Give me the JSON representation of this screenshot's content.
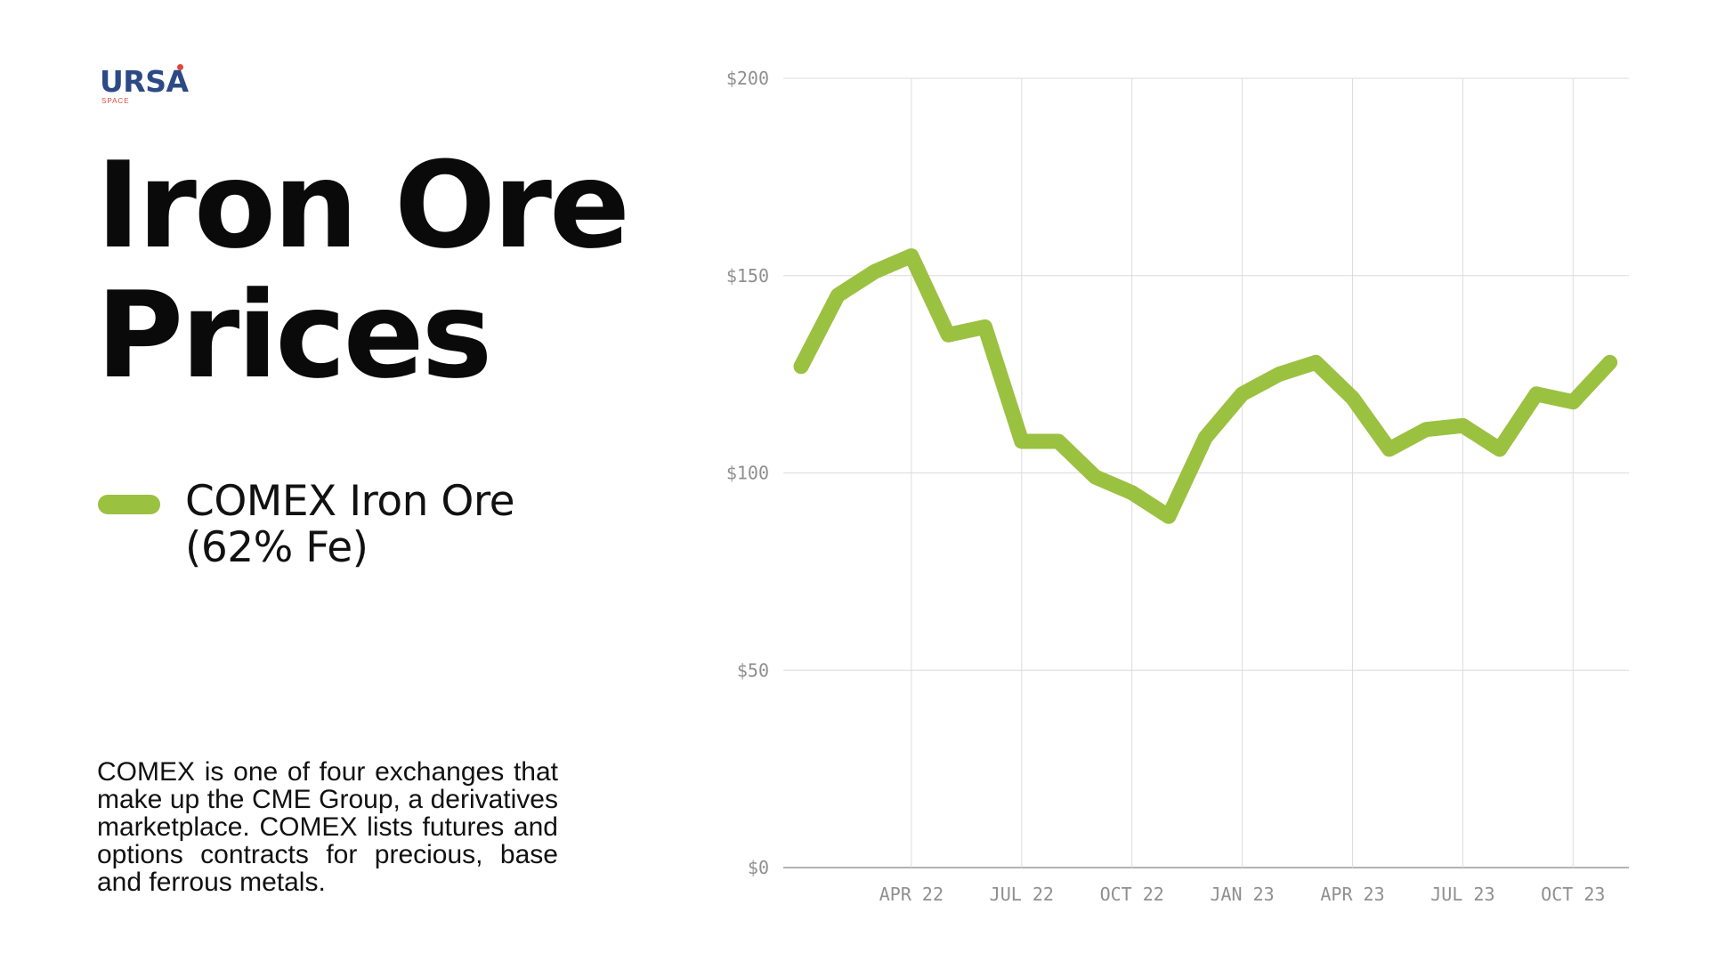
{
  "logo": {
    "word": "URSA",
    "sub": "SPACE"
  },
  "title_lines": [
    "Iron Ore",
    "Prices"
  ],
  "legend": {
    "label": "COMEX Iron Ore (62% Fe)",
    "color": "#9bc141"
  },
  "description": "COMEX is one of four exchanges that make up the CME Group, a derivatives marketplace. COMEX lists futures and options contracts for precious, base and ferrous metals.",
  "chart_data": {
    "type": "line",
    "title": "",
    "xlabel": "",
    "ylabel": "",
    "ylim": [
      0,
      200
    ],
    "y_ticks": [
      {
        "value": 0,
        "label": "$0"
      },
      {
        "value": 50,
        "label": "$50"
      },
      {
        "value": 100,
        "label": "$100"
      },
      {
        "value": 150,
        "label": "$150"
      },
      {
        "value": 200,
        "label": "$200"
      }
    ],
    "x_ticks": [
      "APR 22",
      "JUL 22",
      "OCT 22",
      "JAN 23",
      "APR 23",
      "JUL 23",
      "OCT 23"
    ],
    "grid": true,
    "series": [
      {
        "name": "COMEX Iron Ore (62% Fe)",
        "color": "#9bc141",
        "x": [
          "2022-01",
          "2022-02",
          "2022-03",
          "2022-04",
          "2022-05",
          "2022-06",
          "2022-07",
          "2022-08",
          "2022-09",
          "2022-10",
          "2022-11",
          "2022-12",
          "2023-01",
          "2023-02",
          "2023-03",
          "2023-04",
          "2023-05",
          "2023-06",
          "2023-07",
          "2023-08",
          "2023-09",
          "2023-10",
          "2023-11"
        ],
        "values": [
          127,
          145,
          151,
          155,
          135,
          137,
          108,
          108,
          99,
          95,
          89,
          109,
          120,
          125,
          128,
          119,
          106,
          111,
          112,
          106,
          120,
          118,
          128
        ]
      }
    ]
  }
}
